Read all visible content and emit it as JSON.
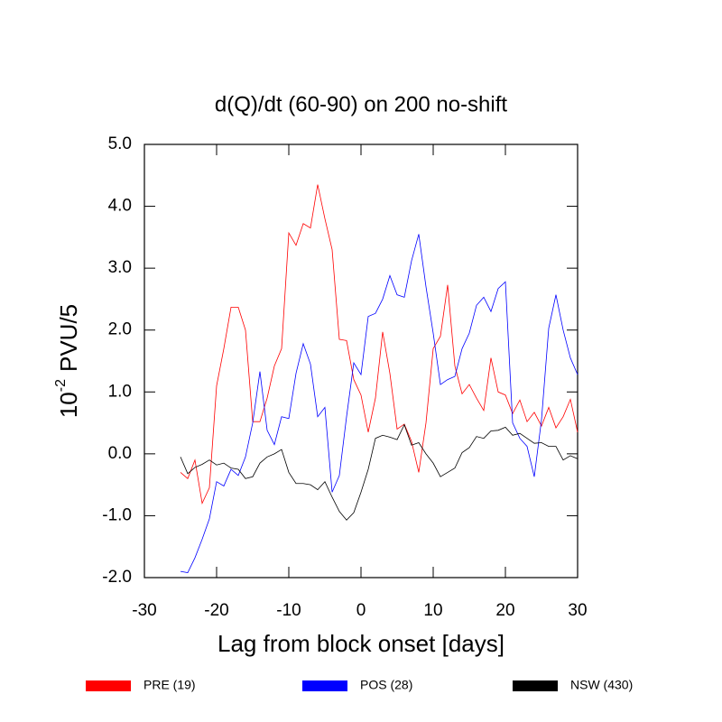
{
  "chart_data": {
    "type": "line",
    "title": "d(Q)/dt (60-90) on 200 no-shift",
    "xlabel": "Lag from block onset [days]",
    "ylabel_base": "10",
    "ylabel_exp": "-2",
    "ylabel_unit": "PVU/5",
    "x": [
      -25,
      -24,
      -23,
      -22,
      -21,
      -20,
      -19,
      -18,
      -17,
      -16,
      -15,
      -14,
      -13,
      -12,
      -11,
      -10,
      -9,
      -8,
      -7,
      -6,
      -5,
      -4,
      -3,
      -2,
      -1,
      0,
      1,
      2,
      3,
      4,
      5,
      6,
      7,
      8,
      9,
      10,
      11,
      12,
      13,
      14,
      15,
      16,
      17,
      18,
      19,
      20,
      21,
      22,
      23,
      24,
      25,
      26,
      27,
      28,
      29,
      30
    ],
    "series": [
      {
        "name": "PRE (19)",
        "color": "#ff0000",
        "values": [
          -0.3,
          -0.4,
          -0.1,
          -0.8,
          -0.55,
          1.1,
          1.7,
          2.37,
          2.37,
          2.0,
          0.52,
          0.52,
          0.9,
          1.42,
          1.7,
          3.57,
          3.37,
          3.72,
          3.65,
          4.35,
          3.8,
          3.3,
          1.85,
          1.83,
          1.2,
          0.95,
          0.35,
          0.9,
          1.97,
          1.3,
          0.4,
          0.48,
          0.2,
          -0.3,
          0.5,
          1.7,
          1.9,
          2.73,
          1.42,
          0.97,
          1.12,
          0.9,
          0.7,
          1.55,
          1.0,
          0.95,
          0.65,
          0.87,
          0.52,
          0.67,
          0.45,
          0.75,
          0.42,
          0.6,
          0.88,
          0.35
        ]
      },
      {
        "name": "POS (28)",
        "color": "#0000ff",
        "values": [
          -1.9,
          -1.92,
          -1.68,
          -1.38,
          -1.05,
          -0.45,
          -0.52,
          -0.25,
          -0.35,
          -0.05,
          0.5,
          1.33,
          0.38,
          0.15,
          0.6,
          0.57,
          1.3,
          1.78,
          1.45,
          0.6,
          0.75,
          -0.62,
          -0.35,
          0.6,
          1.47,
          1.28,
          2.22,
          2.27,
          2.5,
          2.88,
          2.57,
          2.53,
          3.12,
          3.55,
          2.7,
          1.95,
          1.12,
          1.2,
          1.25,
          1.7,
          1.95,
          2.4,
          2.53,
          2.3,
          2.67,
          2.78,
          0.5,
          0.25,
          0.12,
          -0.37,
          0.55,
          2.03,
          2.57,
          2.0,
          1.55,
          1.28
        ]
      },
      {
        "name": "NSW (430)",
        "color": "#000000",
        "values": [
          -0.05,
          -0.32,
          -0.22,
          -0.17,
          -0.1,
          -0.18,
          -0.15,
          -0.23,
          -0.25,
          -0.4,
          -0.37,
          -0.15,
          -0.05,
          0.0,
          0.07,
          -0.3,
          -0.48,
          -0.48,
          -0.5,
          -0.58,
          -0.45,
          -0.7,
          -0.93,
          -1.07,
          -0.95,
          -0.62,
          -0.25,
          0.25,
          0.3,
          0.27,
          0.23,
          0.47,
          0.14,
          0.18,
          0.0,
          -0.15,
          -0.37,
          -0.3,
          -0.23,
          0.02,
          0.1,
          0.28,
          0.25,
          0.37,
          0.38,
          0.43,
          0.3,
          0.33,
          0.25,
          0.17,
          0.18,
          0.12,
          0.12,
          -0.1,
          -0.03,
          -0.08
        ]
      }
    ],
    "xlim": [
      -30,
      30
    ],
    "xticks": [
      -30,
      -20,
      -10,
      0,
      10,
      20,
      30
    ],
    "ylim": [
      -2,
      5
    ],
    "yticks": [
      {
        "value": -2,
        "label": "-2.0"
      },
      {
        "value": -1,
        "label": "-1.0"
      },
      {
        "value": 0,
        "label": "0.0"
      },
      {
        "value": 1,
        "label": "1.0"
      },
      {
        "value": 2,
        "label": "2.0"
      },
      {
        "value": 3,
        "label": "3.0"
      },
      {
        "value": 4,
        "label": "4.0"
      },
      {
        "value": 5,
        "label": "5.0"
      }
    ],
    "grid": false,
    "legend": "bottom"
  }
}
